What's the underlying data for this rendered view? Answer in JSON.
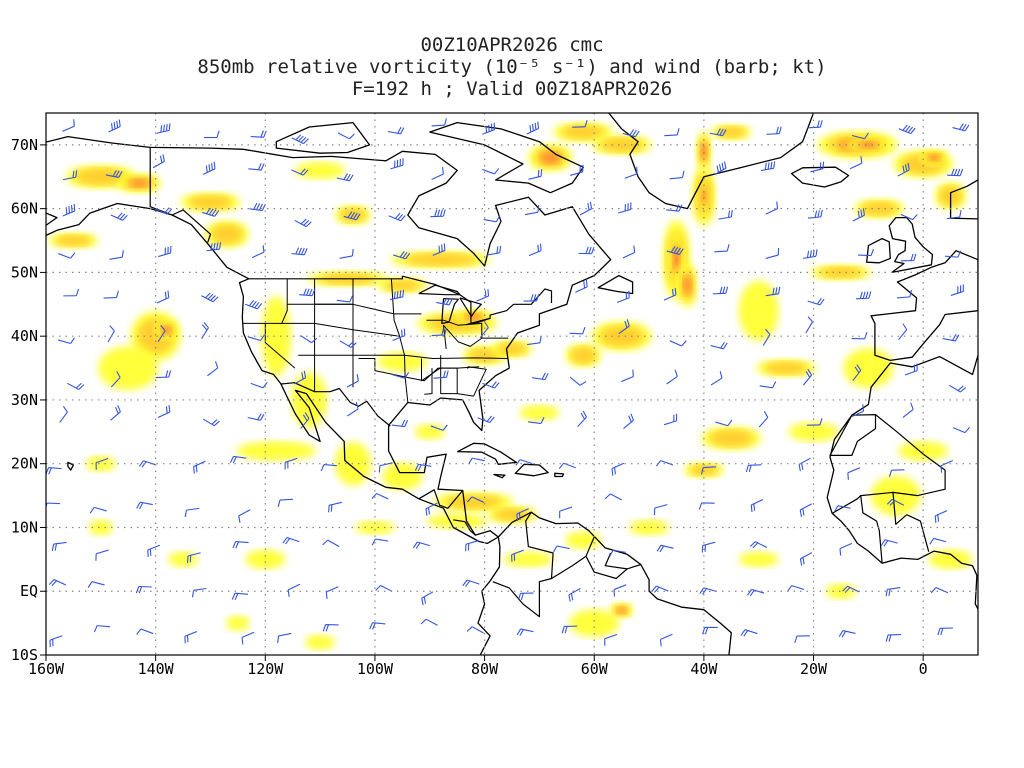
{
  "title": {
    "line1": "00Z10APR2026 cmc",
    "line2": "850mb relative vorticity (10⁻⁵ s⁻¹) and wind (barb; kt)",
    "line3": "F=192 h ; Valid 00Z18APR2026"
  },
  "lat_labels": [
    "70N",
    "60N",
    "50N",
    "40N",
    "30N",
    "20N",
    "10N",
    "EQ",
    "10S"
  ],
  "lon_labels": [
    "160W",
    "140W",
    "120W",
    "100W",
    "80W",
    "60W",
    "40W",
    "20W",
    "0"
  ],
  "colors": {
    "shade_light": "#ffff33",
    "shade_mid": "#ffcc33",
    "shade_high": "#ff8833",
    "shade_max": "#ee3322",
    "barb": "#3355dd",
    "coast": "#000000",
    "grid": "#888888"
  }
}
